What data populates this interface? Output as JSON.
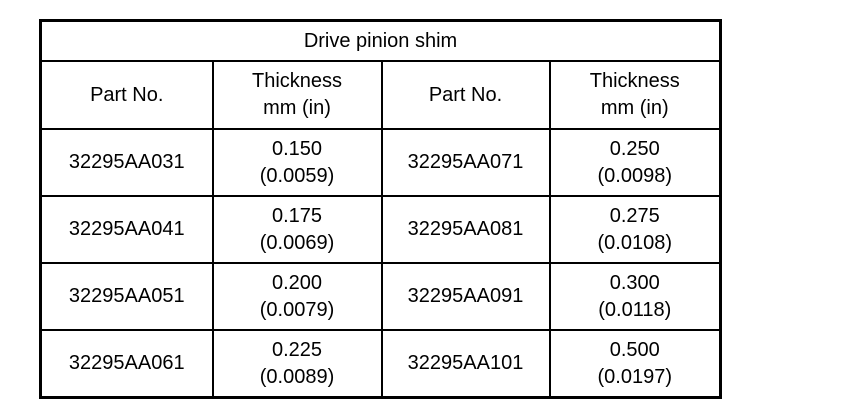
{
  "table": {
    "title": "Drive pinion shim",
    "header": [
      "Part No.",
      "Thickness\nmm (in)",
      "Part No.",
      "Thickness\nmm (in)"
    ],
    "rows": [
      [
        "32295AA031",
        "0.150\n(0.0059)",
        "32295AA071",
        "0.250\n(0.0098)"
      ],
      [
        "32295AA041",
        "0.175\n(0.0069)",
        "32295AA081",
        "0.275\n(0.0108)"
      ],
      [
        "32295AA051",
        "0.200\n(0.0079)",
        "32295AA091",
        "0.300\n(0.0118)"
      ],
      [
        "32295AA061",
        "0.225\n(0.0089)",
        "32295AA101",
        "0.500\n(0.0197)"
      ]
    ]
  }
}
